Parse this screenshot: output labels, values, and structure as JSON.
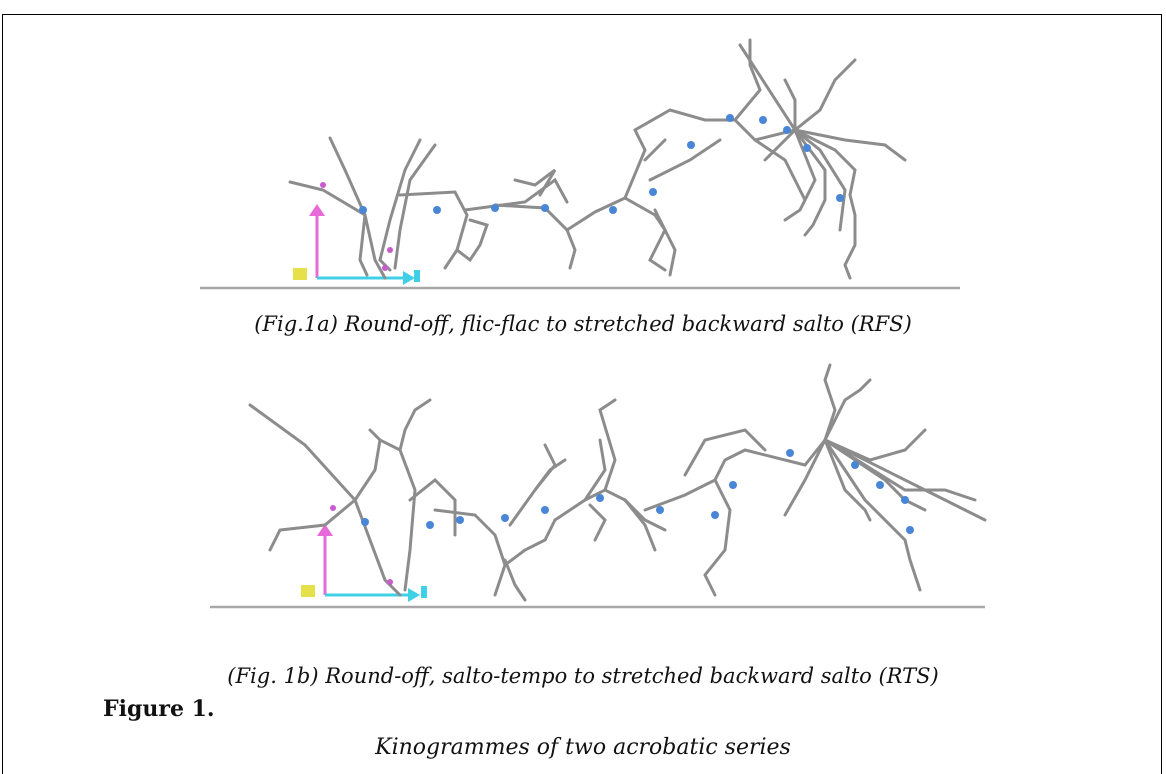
{
  "figure": {
    "caption_a": "(Fig.1a) Round-off, flic-flac to stretched backward salto (RFS)",
    "caption_b": "(Fig. 1b) Round-off, salto-tempo to stretched backward salto (RTS)",
    "label": "Figure 1.",
    "subtitle": "Kinogrammes of two acrobatic series"
  },
  "colors": {
    "ground": "#a8a8a8",
    "stick": "#8c8c8c",
    "joint": "#4a86d6",
    "axis_vertical": "#e86ad8",
    "axis_horizontal": "#3fd0e8",
    "origin": "#e6e04a"
  }
}
